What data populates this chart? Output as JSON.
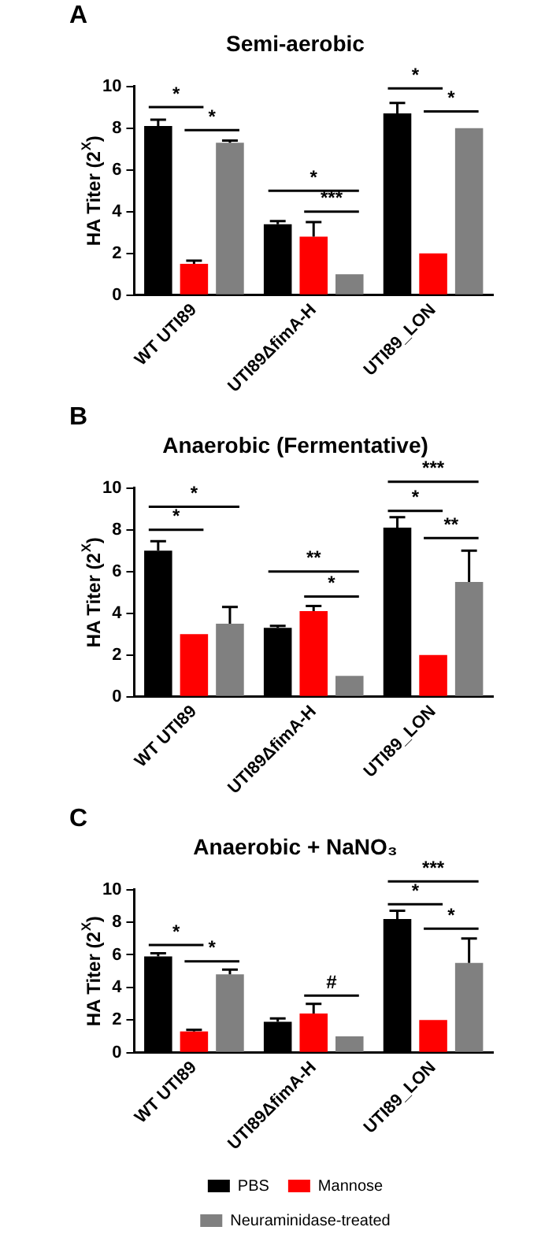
{
  "chart_data": [
    {
      "type": "bar",
      "title": "Semi-aerobic",
      "ylabel": "HA Titer (2$^{X}$)",
      "categories": [
        "WT UTI89",
        "UTI89ΔfimA-H",
        "UTI89_LON"
      ],
      "ylim": [
        0,
        10
      ],
      "yticks": [
        0,
        2,
        4,
        6,
        8,
        10
      ],
      "grid": false,
      "legend": false,
      "series": [
        {
          "color": "#000000",
          "values": [
            8.1,
            3.4,
            8.7
          ],
          "errors": [
            [
              8.1,
              8.4
            ],
            [
              3.4,
              3.55
            ],
            [
              8.7,
              9.2
            ]
          ]
        },
        {
          "color": "#ff0000",
          "values": [
            1.5,
            2.8,
            2.0
          ],
          "errors": [
            [
              1.5,
              1.65
            ],
            [
              2.8,
              3.5
            ],
            null
          ]
        },
        {
          "color": "#808080",
          "values": [
            7.3,
            1.0,
            8.0
          ],
          "errors": [
            [
              7.3,
              7.4
            ],
            null,
            null
          ]
        }
      ],
      "annotations": [
        "A",
        "*",
        "*",
        "*",
        "***",
        "*",
        "*"
      ]
    },
    {
      "type": "bar",
      "title": "Anaerobic (Fermentative)",
      "ylabel": "HA Titer (2$^{X}$)",
      "categories": [
        "WT UTI89",
        "UTI89ΔfimA-H",
        "UTI89_LON"
      ],
      "ylim": [
        0,
        10
      ],
      "yticks": [
        0,
        2,
        4,
        6,
        8,
        10
      ],
      "grid": false,
      "legend": false,
      "series": [
        {
          "color": "#000000",
          "values": [
            7.0,
            3.3,
            8.1
          ],
          "errors": [
            [
              7.0,
              7.45
            ],
            [
              3.3,
              3.4
            ],
            [
              8.1,
              8.6
            ]
          ]
        },
        {
          "color": "#ff0000",
          "values": [
            3.0,
            4.1,
            2.0
          ],
          "errors": [
            null,
            [
              4.1,
              4.35
            ],
            null
          ]
        },
        {
          "color": "#808080",
          "values": [
            3.5,
            1.0,
            5.5
          ],
          "errors": [
            [
              3.5,
              4.3
            ],
            null,
            [
              5.5,
              7.0
            ]
          ]
        }
      ],
      "annotations": [
        "B",
        "*",
        "*",
        "**",
        "*",
        "***",
        "*",
        "**"
      ]
    },
    {
      "type": "bar",
      "title": "Anaerobic + NaNO₃",
      "ylabel": "HA Titer (2$^{X}$)",
      "categories": [
        "WT UTI89",
        "UTI89ΔfimA-H",
        "UTI89_LON"
      ],
      "ylim": [
        0,
        10
      ],
      "yticks": [
        0,
        2,
        4,
        6,
        8,
        10
      ],
      "grid": false,
      "legend": "bottom",
      "series": [
        {
          "name": "PBS",
          "color": "#000000",
          "values": [
            5.9,
            1.9,
            8.2
          ],
          "errors": [
            [
              5.9,
              6.1
            ],
            [
              1.9,
              2.1
            ],
            [
              8.2,
              8.7
            ]
          ]
        },
        {
          "name": "Mannose",
          "color": "#ff0000",
          "values": [
            1.3,
            2.4,
            2.0
          ],
          "errors": [
            [
              1.3,
              1.4
            ],
            [
              2.4,
              3.0
            ],
            null
          ]
        },
        {
          "name": "Neuraminidase-treated",
          "color": "#808080",
          "values": [
            4.8,
            1.0,
            5.5
          ],
          "errors": [
            [
              4.8,
              5.1
            ],
            null,
            [
              5.5,
              7.0
            ]
          ]
        }
      ],
      "annotations": [
        "C",
        "*",
        "*",
        "#",
        "***",
        "*",
        "*"
      ]
    }
  ]
}
